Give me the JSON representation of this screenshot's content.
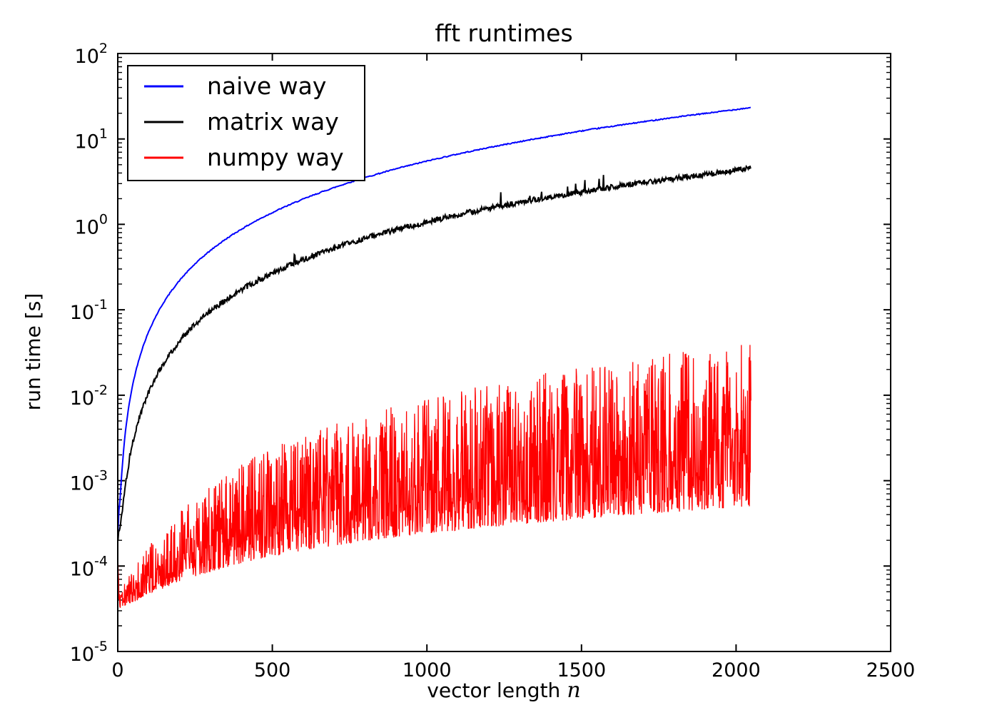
{
  "chart_data": {
    "type": "line",
    "title": "fft runtimes",
    "xlabel": "vector length n",
    "xlabel_text": "vector length",
    "xlabel_var": "n",
    "ylabel": "run time [s]",
    "x_scale": "linear",
    "y_scale": "log",
    "xlim": [
      0,
      2500
    ],
    "ylim": [
      1e-05,
      100
    ],
    "ylim_exp": [
      -5,
      2
    ],
    "x_ticks": [
      0,
      500,
      1000,
      1500,
      2000,
      2500
    ],
    "y_tick_base": "10",
    "y_ticks_exp": [
      2,
      1,
      0,
      -1,
      -2,
      -3,
      -4,
      -5
    ],
    "grid": false,
    "legend": {
      "position": "upper-left",
      "entries": [
        "naive way",
        "matrix way",
        "numpy way"
      ]
    },
    "data_x_range": [
      1,
      2048
    ],
    "series": [
      {
        "name": "naive way",
        "color": "#0000ff",
        "style": "smooth",
        "noise_log10": 0.006,
        "anchors": [
          [
            1,
            0.00026
          ],
          [
            8,
            0.0006
          ],
          [
            16,
            0.00166
          ],
          [
            32,
            0.0059
          ],
          [
            64,
            0.0228
          ],
          [
            128,
            0.0904
          ],
          [
            192,
            0.203
          ],
          [
            256,
            0.361
          ],
          [
            384,
            0.81
          ],
          [
            512,
            1.44
          ],
          [
            640,
            2.25
          ],
          [
            768,
            3.25
          ],
          [
            896,
            4.42
          ],
          [
            1024,
            5.77
          ],
          [
            1152,
            7.3
          ],
          [
            1280,
            9.0
          ],
          [
            1408,
            10.9
          ],
          [
            1536,
            13.0
          ],
          [
            1664,
            15.2
          ],
          [
            1792,
            17.7
          ],
          [
            1920,
            20.3
          ],
          [
            2048,
            23.3
          ]
        ]
      },
      {
        "name": "matrix way",
        "color": "#000000",
        "style": "noisy",
        "noise_log10": 0.032,
        "anchors": [
          [
            1,
            0.00021
          ],
          [
            8,
            0.00028
          ],
          [
            16,
            0.00048
          ],
          [
            32,
            0.0013
          ],
          [
            64,
            0.0046
          ],
          [
            128,
            0.0177
          ],
          [
            192,
            0.0396
          ],
          [
            256,
            0.07
          ],
          [
            384,
            0.158
          ],
          [
            512,
            0.281
          ],
          [
            640,
            0.439
          ],
          [
            768,
            0.632
          ],
          [
            896,
            0.86
          ],
          [
            1024,
            1.12
          ],
          [
            1152,
            1.42
          ],
          [
            1280,
            1.75
          ],
          [
            1408,
            2.12
          ],
          [
            1536,
            2.53
          ],
          [
            1664,
            2.96
          ],
          [
            1792,
            3.44
          ],
          [
            1920,
            3.95
          ],
          [
            2048,
            4.55
          ]
        ]
      },
      {
        "name": "numpy way",
        "color": "#ff0000",
        "style": "band",
        "bias_exponent": 1.7,
        "envelope_low": [
          [
            1,
            0.000105
          ],
          [
            4,
            4e-05
          ],
          [
            8,
            3.2e-05
          ],
          [
            20,
            3.3e-05
          ],
          [
            60,
            3.9e-05
          ],
          [
            150,
            5.5e-05
          ],
          [
            300,
            8.5e-05
          ],
          [
            600,
            0.00015
          ],
          [
            1000,
            0.00024
          ],
          [
            1400,
            0.00033
          ],
          [
            1800,
            0.00043
          ],
          [
            2048,
            0.0005
          ]
        ],
        "envelope_high": [
          [
            1,
            0.00013
          ],
          [
            4,
            6e-05
          ],
          [
            8,
            4.5e-05
          ],
          [
            20,
            6e-05
          ],
          [
            60,
            0.0001
          ],
          [
            150,
            0.00026
          ],
          [
            300,
            0.0009
          ],
          [
            600,
            0.0034
          ],
          [
            1000,
            0.0095
          ],
          [
            1400,
            0.019
          ],
          [
            1800,
            0.032
          ],
          [
            2048,
            0.041
          ]
        ]
      }
    ]
  }
}
